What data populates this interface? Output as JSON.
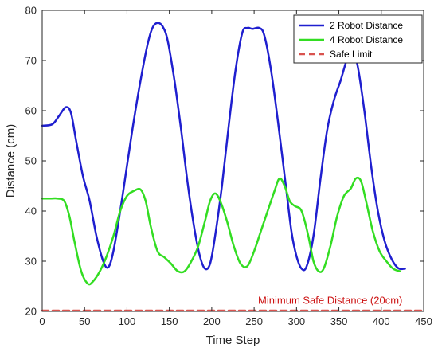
{
  "chart_data": {
    "type": "line",
    "title": "",
    "xlabel": "Time Step",
    "ylabel": "Distance (cm)",
    "xlim": [
      0,
      450
    ],
    "ylim": [
      20,
      80
    ],
    "xticks": [
      0,
      50,
      100,
      150,
      200,
      250,
      300,
      350,
      400,
      450
    ],
    "yticks": [
      20,
      30,
      40,
      50,
      60,
      70,
      80
    ],
    "grid": false,
    "legend_position": "top-right",
    "series": [
      {
        "name": "2 Robot Distance",
        "color": "#1f1fcf",
        "style": "solid",
        "x": [
          0,
          12,
          20,
          28,
          34,
          40,
          48,
          56,
          64,
          72,
          78,
          84,
          92,
          100,
          108,
          116,
          124,
          130,
          136,
          142,
          148,
          156,
          164,
          172,
          180,
          186,
          192,
          198,
          204,
          212,
          220,
          228,
          236,
          242,
          248,
          256,
          262,
          270,
          278,
          286,
          294,
          300,
          306,
          312,
          320,
          328,
          336,
          344,
          352,
          360,
          366,
          372,
          380,
          388,
          396,
          404,
          412,
          420,
          428
        ],
        "y": [
          57,
          57.3,
          59,
          60.7,
          59.5,
          54,
          47,
          42,
          35,
          30,
          28.8,
          32,
          40,
          49,
          58,
          66,
          73,
          76.5,
          77.5,
          76.8,
          74,
          66,
          56,
          45,
          36,
          31,
          28.5,
          29.5,
          35,
          45,
          57,
          68,
          75.5,
          76.5,
          76.3,
          76.5,
          75,
          68,
          58,
          47,
          36,
          31,
          28.5,
          29,
          35,
          46,
          56,
          62,
          66,
          70.5,
          72,
          69,
          60,
          49,
          40,
          34,
          30.5,
          28.6,
          28.5
        ]
      },
      {
        "name": "4 Robot Distance",
        "color": "#33dd22",
        "style": "solid",
        "x": [
          0,
          10,
          18,
          26,
          32,
          38,
          46,
          54,
          60,
          68,
          76,
          84,
          92,
          100,
          108,
          116,
          122,
          128,
          136,
          144,
          152,
          160,
          168,
          176,
          184,
          192,
          198,
          204,
          210,
          218,
          226,
          234,
          242,
          250,
          258,
          266,
          274,
          280,
          286,
          292,
          298,
          306,
          314,
          320,
          326,
          332,
          340,
          348,
          356,
          364,
          370,
          376,
          382,
          390,
          398,
          406,
          414,
          422
        ],
        "y": [
          42.5,
          42.5,
          42.5,
          42,
          39,
          34,
          28,
          25.5,
          26,
          28,
          31,
          35,
          40,
          43,
          44,
          44.3,
          42,
          37,
          32,
          30.8,
          29.5,
          28,
          28,
          30,
          33,
          38,
          42,
          43.5,
          42,
          38,
          33,
          29.5,
          29,
          32,
          36,
          40,
          44,
          46.5,
          45,
          42,
          41,
          40,
          35,
          30,
          28,
          28.5,
          33,
          39,
          43,
          44.5,
          46.5,
          46,
          42,
          36,
          32,
          30,
          28.5,
          28
        ]
      },
      {
        "name": "Safe Limit",
        "color": "#d9534f",
        "style": "dashed",
        "x": [
          0,
          450
        ],
        "y": [
          20,
          20
        ]
      }
    ],
    "annotations": [
      {
        "text": "Minimum Safe Distance (20cm)",
        "x": 425,
        "y": 21.5,
        "color": "#cc1111"
      }
    ]
  }
}
